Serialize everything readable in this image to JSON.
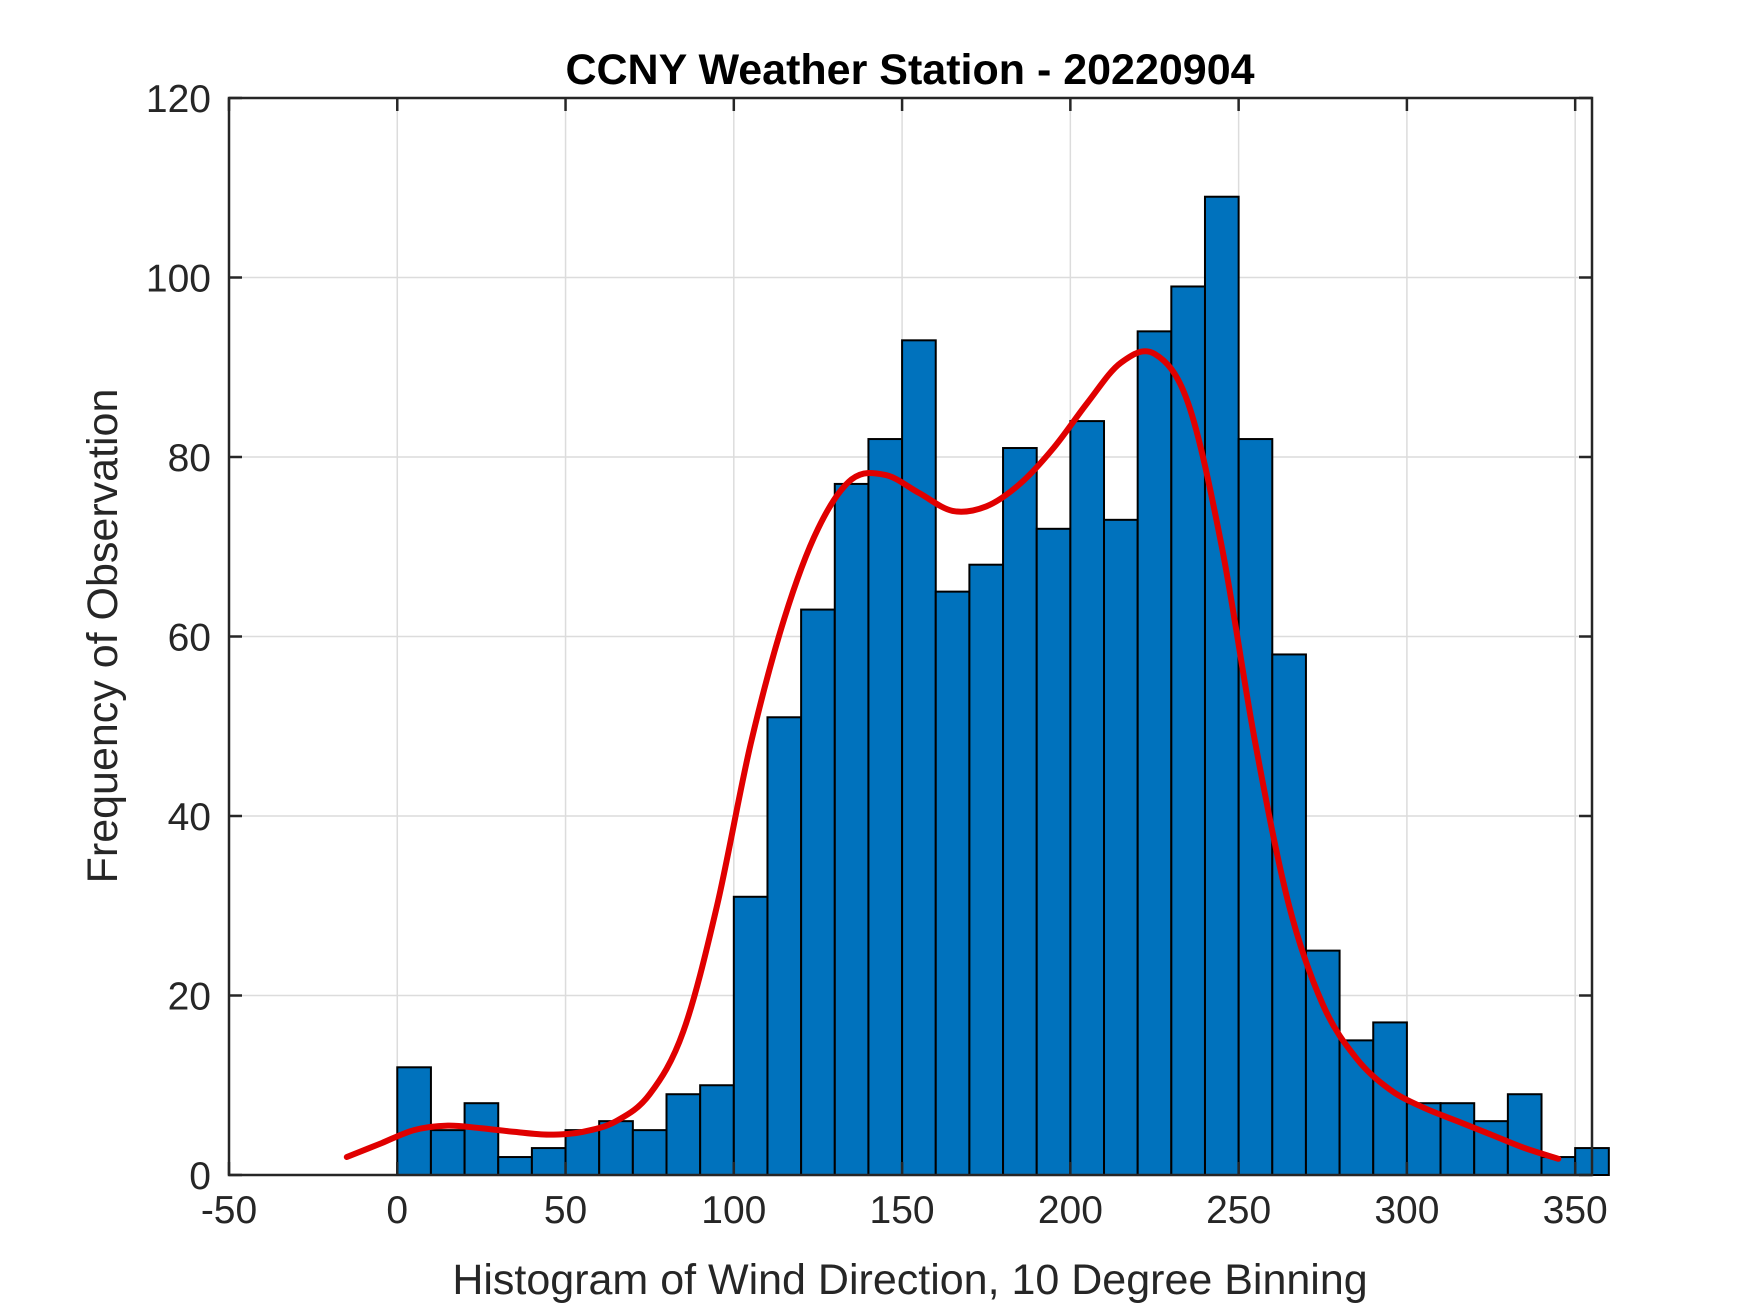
{
  "chart_data": {
    "type": "bar",
    "title": "CCNY Weather Station - 20220904",
    "xlabel": "Histogram of Wind Direction, 10 Degree Binning",
    "ylabel": "Frequency of Observation",
    "xlim": [
      -50,
      355
    ],
    "ylim": [
      0,
      120
    ],
    "grid": true,
    "bin_width": 10,
    "bin_edges": [
      0,
      10,
      20,
      30,
      40,
      50,
      60,
      70,
      80,
      90,
      100,
      110,
      120,
      130,
      140,
      150,
      160,
      170,
      180,
      190,
      200,
      210,
      220,
      230,
      240,
      250,
      260,
      270,
      280,
      290,
      300,
      310,
      320,
      330,
      340,
      350
    ],
    "values": [
      12,
      5,
      8,
      2,
      3,
      5,
      6,
      5,
      9,
      10,
      31,
      51,
      63,
      77,
      82,
      93,
      65,
      68,
      81,
      72,
      84,
      73,
      94,
      99,
      109,
      82,
      58,
      25,
      15,
      17,
      8,
      8,
      6,
      9,
      2,
      3
    ],
    "xticks": [
      -50,
      0,
      50,
      100,
      150,
      200,
      250,
      300,
      350
    ],
    "yticks": [
      0,
      20,
      40,
      60,
      80,
      100,
      120
    ],
    "fit_curve": {
      "x": [
        -15,
        -5,
        5,
        15,
        25,
        35,
        45,
        55,
        65,
        75,
        85,
        95,
        105,
        115,
        125,
        135,
        145,
        155,
        165,
        175,
        185,
        195,
        205,
        215,
        225,
        235,
        245,
        255,
        265,
        275,
        285,
        295,
        305,
        315,
        325,
        335,
        345
      ],
      "y": [
        2,
        3.5,
        5,
        5.5,
        5.2,
        4.8,
        4.5,
        4.8,
        6,
        9,
        16,
        30,
        48,
        62,
        72,
        77.5,
        78,
        76,
        74,
        74.5,
        77,
        81,
        86,
        90.5,
        91.5,
        86,
        70,
        48,
        30,
        19,
        13,
        9.5,
        7.5,
        6,
        4.5,
        3,
        1.8
      ]
    },
    "colors": {
      "bar_fill": "#0072BD",
      "bar_edge": "#000000",
      "fit_line": "#E00000",
      "grid": "#DCDCDC",
      "axis": "#262626"
    }
  }
}
